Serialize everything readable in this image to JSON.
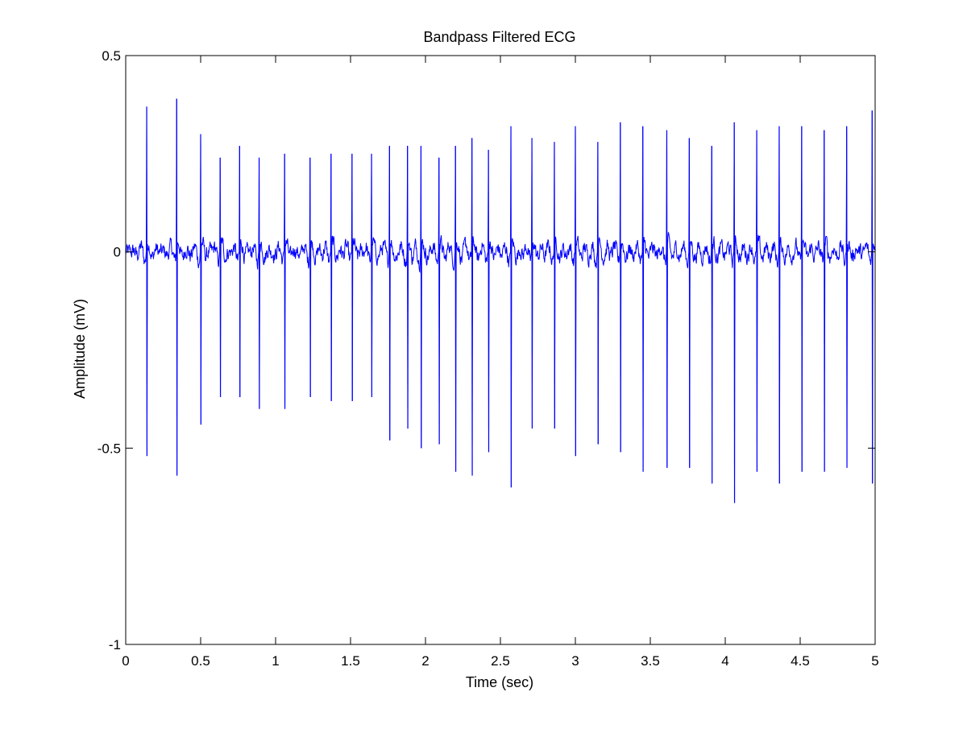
{
  "chart_data": {
    "type": "line",
    "title": "Bandpass Filtered ECG",
    "xlabel": "Time (sec)",
    "ylabel": "Amplitude (mV)",
    "xlim": [
      0,
      5
    ],
    "ylim": [
      -1,
      0.5
    ],
    "x_ticks": [
      0,
      0.5,
      1,
      1.5,
      2,
      2.5,
      3,
      3.5,
      4,
      4.5,
      5
    ],
    "x_tick_labels": [
      "0",
      "0.5",
      "1",
      "1.5",
      "2",
      "2.5",
      "3",
      "3.5",
      "4",
      "4.5",
      "5"
    ],
    "y_ticks": [
      -1,
      -0.5,
      0,
      0.5
    ],
    "y_tick_labels": [
      "-1",
      "-0.5",
      "0",
      "0.5"
    ],
    "grid": false,
    "legend": "none",
    "line_color": "#0000ff",
    "baseline_noise_amplitude": 0.04,
    "sampling_rate_hz": 400,
    "series": [
      {
        "beats": [
          {
            "t": 0.14,
            "r": 0.37,
            "s": -0.52
          },
          {
            "t": 0.34,
            "r": 0.39,
            "s": -0.57
          },
          {
            "t": 0.5,
            "r": 0.3,
            "s": -0.44
          },
          {
            "t": 0.63,
            "r": 0.24,
            "s": -0.37
          },
          {
            "t": 0.76,
            "r": 0.27,
            "s": -0.37
          },
          {
            "t": 0.89,
            "r": 0.24,
            "s": -0.4
          },
          {
            "t": 1.06,
            "r": 0.25,
            "s": -0.4
          },
          {
            "t": 1.23,
            "r": 0.24,
            "s": -0.37
          },
          {
            "t": 1.37,
            "r": 0.25,
            "s": -0.38
          },
          {
            "t": 1.51,
            "r": 0.25,
            "s": -0.38
          },
          {
            "t": 1.64,
            "r": 0.25,
            "s": -0.37
          },
          {
            "t": 1.76,
            "r": 0.27,
            "s": -0.48
          },
          {
            "t": 1.88,
            "r": 0.27,
            "s": -0.45
          },
          {
            "t": 1.97,
            "r": 0.27,
            "s": -0.5
          },
          {
            "t": 2.09,
            "r": 0.24,
            "s": -0.49
          },
          {
            "t": 2.2,
            "r": 0.27,
            "s": -0.56
          },
          {
            "t": 2.31,
            "r": 0.29,
            "s": -0.57
          },
          {
            "t": 2.42,
            "r": 0.26,
            "s": -0.51
          },
          {
            "t": 2.57,
            "r": 0.32,
            "s": -0.6
          },
          {
            "t": 2.71,
            "r": 0.29,
            "s": -0.45
          },
          {
            "t": 2.86,
            "r": 0.28,
            "s": -0.45
          },
          {
            "t": 3.0,
            "r": 0.32,
            "s": -0.52
          },
          {
            "t": 3.15,
            "r": 0.28,
            "s": -0.49
          },
          {
            "t": 3.3,
            "r": 0.33,
            "s": -0.51
          },
          {
            "t": 3.45,
            "r": 0.32,
            "s": -0.56
          },
          {
            "t": 3.61,
            "r": 0.31,
            "s": -0.55
          },
          {
            "t": 3.76,
            "r": 0.29,
            "s": -0.55
          },
          {
            "t": 3.91,
            "r": 0.27,
            "s": -0.59
          },
          {
            "t": 4.06,
            "r": 0.33,
            "s": -0.64
          },
          {
            "t": 4.21,
            "r": 0.31,
            "s": -0.56
          },
          {
            "t": 4.36,
            "r": 0.32,
            "s": -0.59
          },
          {
            "t": 4.51,
            "r": 0.32,
            "s": -0.56
          },
          {
            "t": 4.66,
            "r": 0.31,
            "s": -0.56
          },
          {
            "t": 4.81,
            "r": 0.32,
            "s": -0.55
          },
          {
            "t": 4.98,
            "r": 0.36,
            "s": -0.59
          }
        ]
      }
    ]
  }
}
